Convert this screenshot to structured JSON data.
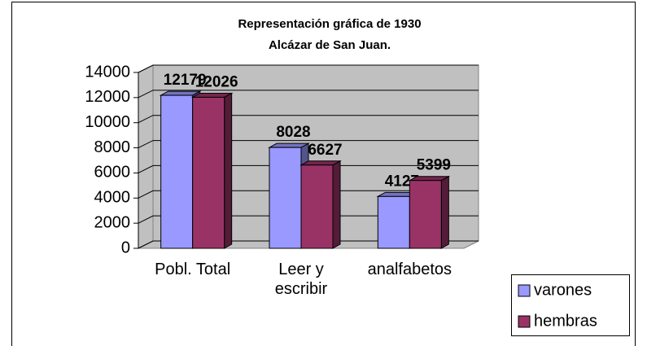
{
  "chart_data": {
    "type": "bar3d",
    "title": [
      "Representación gráfica de 1930",
      "Alcázar de San Juan."
    ],
    "categories": [
      "Pobl. Total",
      "Leer y escribir",
      "analfabetos"
    ],
    "series": [
      {
        "name": "varones",
        "color": "#9999ff",
        "values": [
          12179,
          8028,
          4127
        ]
      },
      {
        "name": "hembras",
        "color": "#993366",
        "values": [
          12026,
          6627,
          5399
        ]
      }
    ],
    "ylim": [
      0,
      14000
    ],
    "yticks": [
      0,
      2000,
      4000,
      6000,
      8000,
      10000,
      12000,
      14000
    ],
    "grid": true,
    "legend": "right"
  }
}
